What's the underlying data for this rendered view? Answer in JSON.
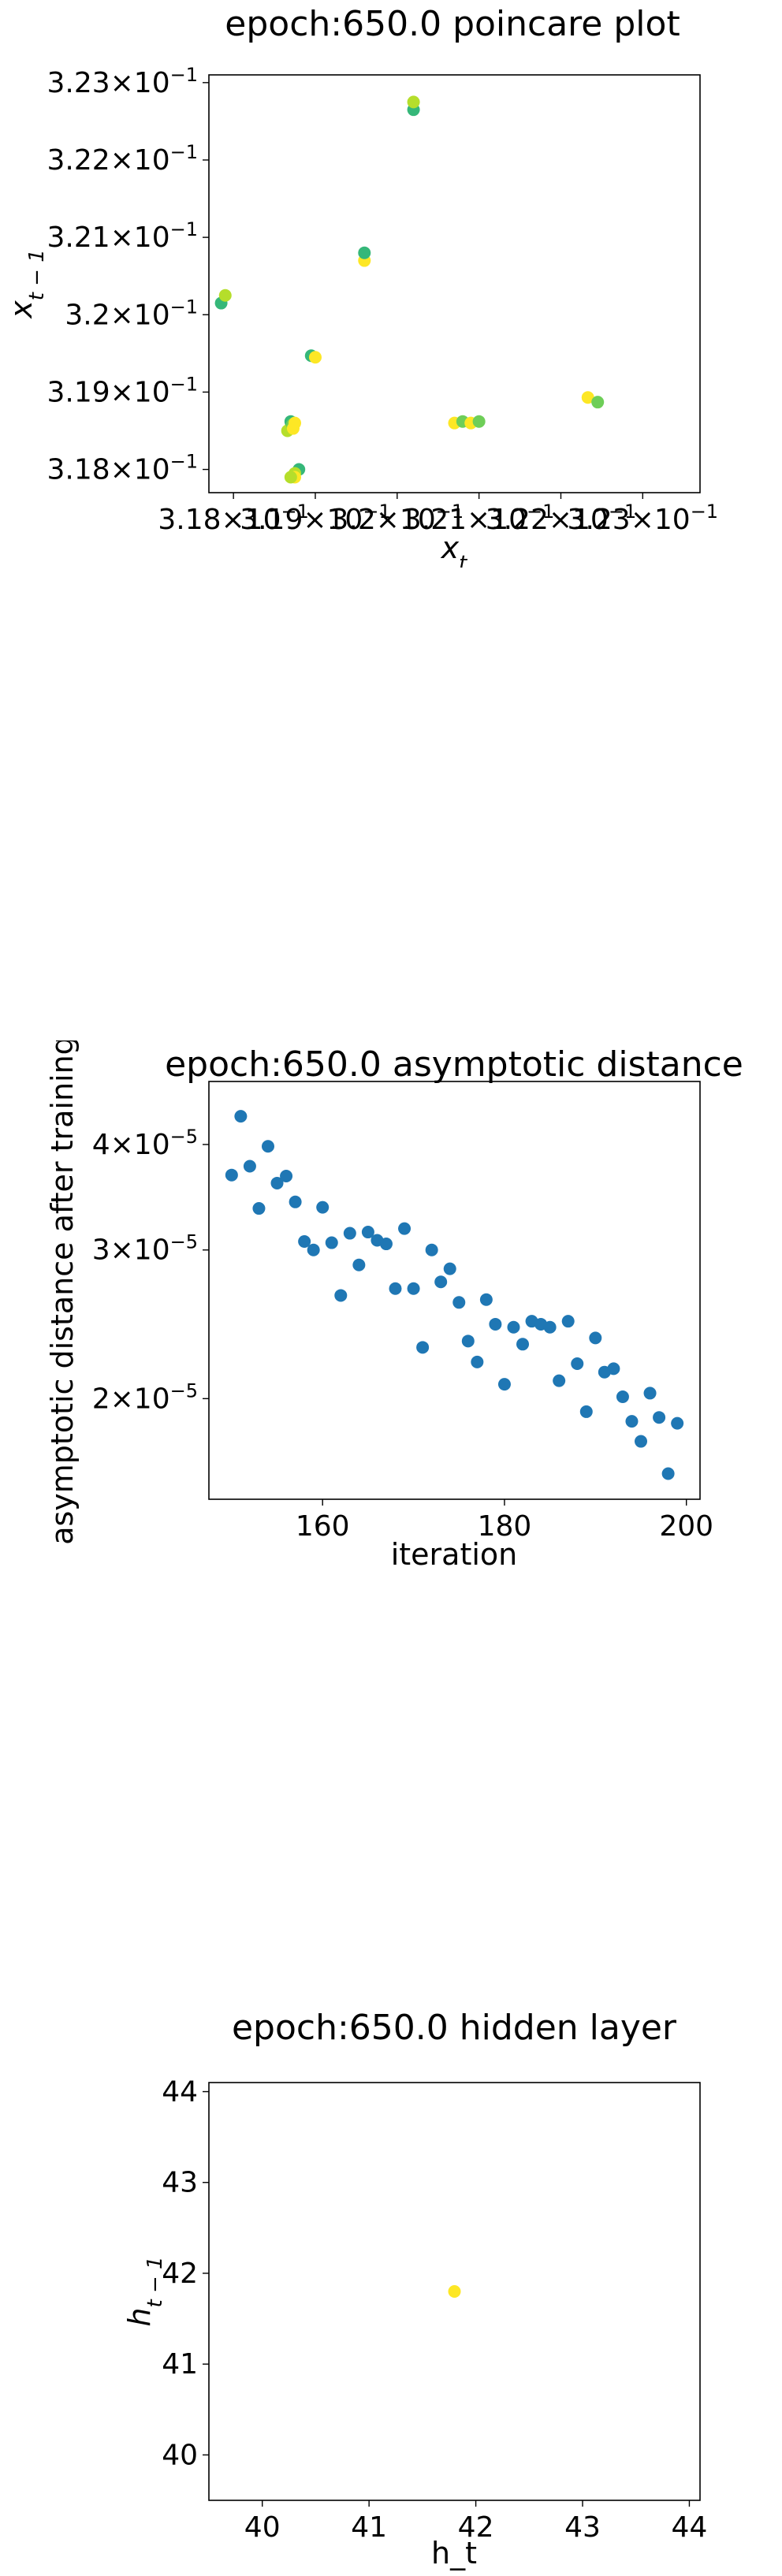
{
  "chart_data": [
    {
      "type": "scatter",
      "title": "epoch:650.0 poincare plot",
      "xlabel": "x_t",
      "ylabel": "x_{t-1}",
      "xlim": [
        0.3177,
        0.3237
      ],
      "ylim": [
        0.3177,
        0.3231
      ],
      "x_tick_values": [
        0.318,
        0.319,
        0.32,
        0.321,
        0.322,
        0.323
      ],
      "y_tick_values": [
        0.318,
        0.319,
        0.32,
        0.321,
        0.322,
        0.323
      ],
      "x_tick_labels": [
        {
          "mant": "3.18",
          "exp": "−1"
        },
        {
          "mant": "3.19",
          "exp": "−1"
        },
        {
          "mant": "3.2",
          "exp": "−1"
        },
        {
          "mant": "3.21",
          "exp": "−1"
        },
        {
          "mant": "3.22",
          "exp": "−1"
        },
        {
          "mant": "3.23",
          "exp": "−1"
        }
      ],
      "y_tick_labels": [
        {
          "mant": "3.18",
          "exp": "−1"
        },
        {
          "mant": "3.19",
          "exp": "−1"
        },
        {
          "mant": "3.2",
          "exp": "−1"
        },
        {
          "mant": "3.21",
          "exp": "−1"
        },
        {
          "mant": "3.22",
          "exp": "−1"
        },
        {
          "mant": "3.23",
          "exp": "−1"
        }
      ],
      "x": [
        0.31785,
        0.3179,
        0.31895,
        0.319,
        0.3196,
        0.3196,
        0.3202,
        0.3202,
        0.3207,
        0.3208,
        0.3209,
        0.321,
        0.32233,
        0.32245,
        0.3187,
        0.31866,
        0.3187,
        0.31872,
        0.31873,
        0.31875,
        0.3188,
        0.31875,
        0.31875,
        0.3187
      ],
      "y": [
        0.32015,
        0.32025,
        0.31947,
        0.31945,
        0.3207,
        0.3208,
        0.32265,
        0.32275,
        0.3186,
        0.31862,
        0.3186,
        0.31862,
        0.31893,
        0.31887,
        0.31855,
        0.3185,
        0.31862,
        0.31858,
        0.31853,
        0.3186,
        0.318,
        0.31795,
        0.3179,
        0.3179
      ],
      "colors": [
        "#35b779",
        "#b5de2b",
        "#35b779",
        "#fde725",
        "#fde725",
        "#35b779",
        "#35b779",
        "#b5de2b",
        "#fde725",
        "#6ece58",
        "#fde725",
        "#6ece58",
        "#fde725",
        "#6ece58",
        "#fde725",
        "#b5de2b",
        "#35b779",
        "#6ece58",
        "#fde725",
        "#fde725",
        "#35b779",
        "#b5de2b",
        "#fde725",
        "#b5de2b"
      ],
      "grid": false
    },
    {
      "type": "scatter",
      "title": "epoch:650.0 asymptotic distance",
      "xlabel": "iteration",
      "ylabel": "asymptotic distance after training",
      "y_scale": "log",
      "xlim": [
        147.5,
        201.5
      ],
      "ylim": [
        1.52e-05,
        4.75e-05
      ],
      "x_tick_values": [
        160,
        180,
        200
      ],
      "x_tick_labels": [
        "160",
        "180",
        "200"
      ],
      "y_tick_values": [
        2e-05,
        3e-05,
        4e-05
      ],
      "y_tick_labels": [
        {
          "mant": "2",
          "exp": "−5"
        },
        {
          "mant": "3",
          "exp": "−5"
        },
        {
          "mant": "4",
          "exp": "−5"
        }
      ],
      "x": [
        150,
        151,
        152,
        153,
        154,
        155,
        156,
        157,
        158,
        159,
        160,
        161,
        162,
        163,
        164,
        165,
        166,
        167,
        168,
        169,
        170,
        171,
        172,
        173,
        174,
        175,
        176,
        177,
        178,
        179,
        180,
        181,
        182,
        183,
        184,
        185,
        186,
        187,
        188,
        189,
        190,
        191,
        192,
        193,
        194,
        195,
        196,
        197,
        198,
        199
      ],
      "y": [
        3.68e-05,
        4.32e-05,
        3.77e-05,
        3.36e-05,
        3.98e-05,
        3.6e-05,
        3.67e-05,
        3.42e-05,
        3.07e-05,
        3e-05,
        3.37e-05,
        3.06e-05,
        2.65e-05,
        3.14e-05,
        2.88e-05,
        3.15e-05,
        3.08e-05,
        3.05e-05,
        2.7e-05,
        3.18e-05,
        2.7e-05,
        2.3e-05,
        3e-05,
        2.75e-05,
        2.85e-05,
        2.6e-05,
        2.34e-05,
        2.21e-05,
        2.62e-05,
        2.45e-05,
        2.08e-05,
        2.43e-05,
        2.32e-05,
        2.47e-05,
        2.45e-05,
        2.43e-05,
        2.1e-05,
        2.47e-05,
        2.2e-05,
        1.93e-05,
        2.36e-05,
        2.15e-05,
        2.17e-05,
        2.01e-05,
        1.88e-05,
        1.78e-05,
        2.03e-05,
        1.9e-05,
        1.63e-05,
        1.87e-05
      ],
      "color": "#1f77b4",
      "grid": false
    },
    {
      "type": "scatter",
      "title": "epoch:650.0 hidden layer",
      "xlabel": "h_t",
      "ylabel": "h_{t-1}",
      "xlim": [
        39.5,
        44.1
      ],
      "ylim": [
        39.5,
        44.1
      ],
      "x_tick_values": [
        40,
        41,
        42,
        43,
        44
      ],
      "x_tick_labels": [
        "40",
        "41",
        "42",
        "43",
        "44"
      ],
      "y_tick_values": [
        40,
        41,
        42,
        43,
        44
      ],
      "y_tick_labels": [
        "40",
        "41",
        "42",
        "43",
        "44"
      ],
      "x": [
        41.8
      ],
      "y": [
        41.8
      ],
      "color": "#fde725",
      "grid": false
    }
  ]
}
